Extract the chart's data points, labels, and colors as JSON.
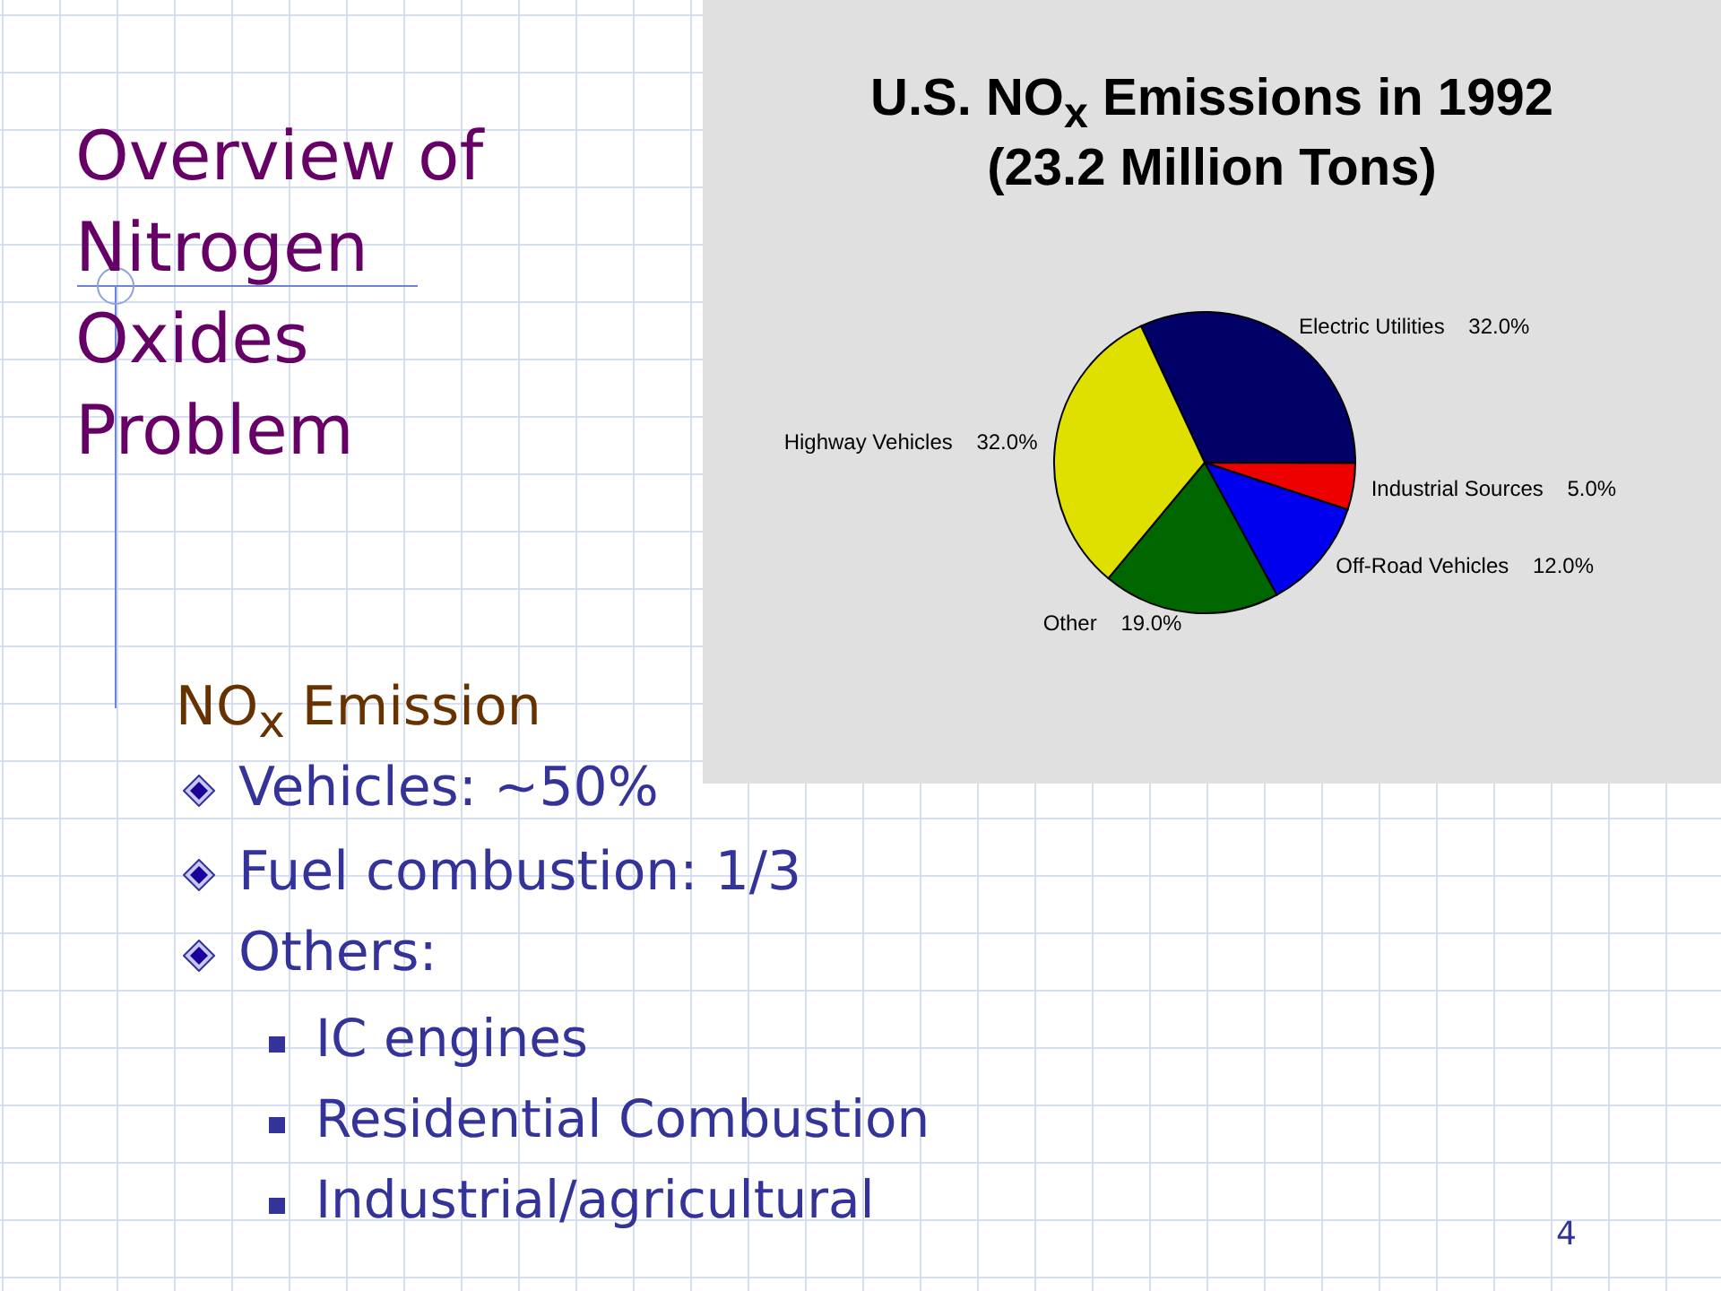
{
  "chart_data": {
    "type": "pie",
    "title": "U.S. NO$_{x}$ Emissions in 1992",
    "subtitle": "(23.2 Million Tons)",
    "categories": [
      "Electric Utilities",
      "Industrial Sources",
      "Off-Road Vehicles",
      "Other",
      "Highway Vehicles"
    ],
    "values": [
      32,
      5,
      12,
      19,
      32
    ],
    "colors": [
      "#000066",
      "#ee0000",
      "#0000ee",
      "#006600",
      "#e0e000"
    ],
    "value_labels": [
      "32.0%",
      "5.0%",
      "12.0%",
      "19.0%",
      "32.0%"
    ],
    "annotations": [
      "Overview of Nitrogen Oxides Problem",
      "NO$_{x}$ Emission",
      "Vehicles: ~50%",
      "Fuel combustion: 1/3",
      "Others:",
      "IC engines",
      "Residential Combustion",
      "Industrial/agricultural",
      "4"
    ]
  }
}
